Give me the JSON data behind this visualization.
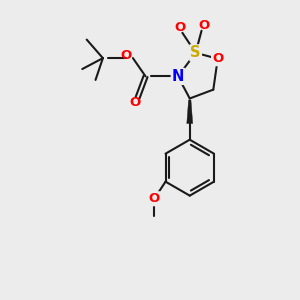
{
  "background_color": "#ececec",
  "bond_color": "#1a1a1a",
  "N_color": "#0000ff",
  "O_color": "#ff0000",
  "S_color": "#ccaa00",
  "figsize": [
    3.0,
    3.0
  ],
  "dpi": 100,
  "lw": 1.5,
  "xlim": [
    0,
    10
  ],
  "ylim": [
    0,
    10
  ]
}
